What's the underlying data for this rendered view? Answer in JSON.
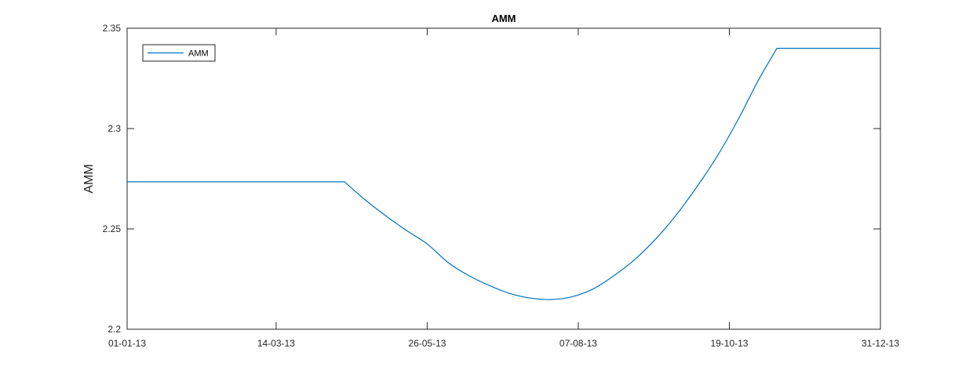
{
  "chart_data": {
    "type": "line",
    "title": "AMM",
    "xlabel": "",
    "ylabel": "AMM",
    "x_axis_kind": "date",
    "xlim": [
      "2013-01-01",
      "2013-12-31"
    ],
    "ylim": [
      2.2,
      2.35
    ],
    "x_ticks": [
      {
        "date": "2013-01-01",
        "label": "01-01-13"
      },
      {
        "date": "2013-03-14",
        "label": "14-03-13"
      },
      {
        "date": "2013-05-26",
        "label": "26-05-13"
      },
      {
        "date": "2013-08-07",
        "label": "07-08-13"
      },
      {
        "date": "2013-10-19",
        "label": "19-10-13"
      },
      {
        "date": "2013-12-31",
        "label": "31-12-13"
      }
    ],
    "y_ticks": [
      {
        "value": 2.2,
        "label": "2.2"
      },
      {
        "value": 2.25,
        "label": "2.25"
      },
      {
        "value": 2.3,
        "label": "2.3"
      },
      {
        "value": 2.35,
        "label": "2.35"
      }
    ],
    "grid": false,
    "legend_position": "top-left",
    "series": [
      {
        "name": "AMM",
        "color": "#0072bd",
        "points": [
          {
            "x": "2013-01-01",
            "y": 2.2735
          },
          {
            "x": "2013-04-16",
            "y": 2.2735
          },
          {
            "x": "2013-04-26",
            "y": 2.2645
          },
          {
            "x": "2013-05-06",
            "y": 2.2565
          },
          {
            "x": "2013-05-16",
            "y": 2.2492
          },
          {
            "x": "2013-05-26",
            "y": 2.2425
          },
          {
            "x": "2013-06-05",
            "y": 2.2333
          },
          {
            "x": "2013-06-15",
            "y": 2.2268
          },
          {
            "x": "2013-06-25",
            "y": 2.2218
          },
          {
            "x": "2013-07-05",
            "y": 2.2178
          },
          {
            "x": "2013-07-15",
            "y": 2.2155
          },
          {
            "x": "2013-07-25",
            "y": 2.2148
          },
          {
            "x": "2013-08-04",
            "y": 2.2162
          },
          {
            "x": "2013-08-14",
            "y": 2.22
          },
          {
            "x": "2013-08-24",
            "y": 2.2265
          },
          {
            "x": "2013-09-03",
            "y": 2.2345
          },
          {
            "x": "2013-09-13",
            "y": 2.2445
          },
          {
            "x": "2013-09-23",
            "y": 2.2565
          },
          {
            "x": "2013-10-03",
            "y": 2.2705
          },
          {
            "x": "2013-10-13",
            "y": 2.286
          },
          {
            "x": "2013-10-23",
            "y": 2.304
          },
          {
            "x": "2013-11-02",
            "y": 2.324
          },
          {
            "x": "2013-11-11",
            "y": 2.34
          },
          {
            "x": "2013-12-31",
            "y": 2.34
          }
        ]
      }
    ]
  }
}
